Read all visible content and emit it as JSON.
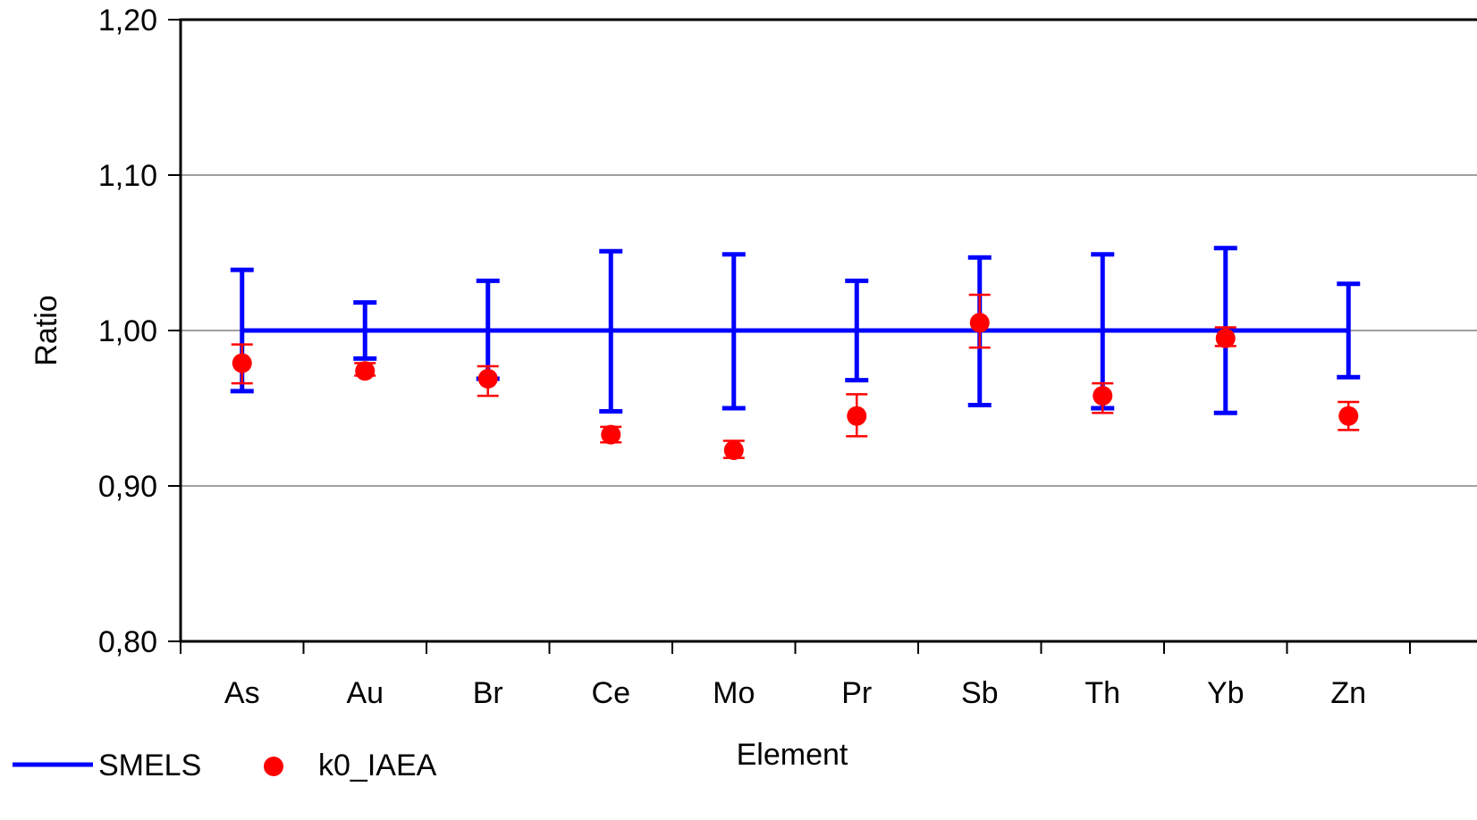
{
  "chart_data": {
    "type": "scatter",
    "xlabel": "Element",
    "ylabel": "Ratio",
    "ylim": [
      0.8,
      1.2
    ],
    "yticks": [
      "0,80",
      "0,90",
      "1,00",
      "1,10",
      "1,20"
    ],
    "ytick_values": [
      0.8,
      0.9,
      1.0,
      1.1,
      1.2
    ],
    "grid": "horizontal",
    "categories": [
      "As",
      "Au",
      "Br",
      "Ce",
      "Mo",
      "Pr",
      "Sb",
      "Th",
      "Yb",
      "Zn"
    ],
    "series": [
      {
        "name": "SMELS",
        "kind": "line-with-errorbars",
        "color": "#0000FF",
        "values": [
          1.0,
          1.0,
          1.0,
          1.0,
          1.0,
          1.0,
          1.0,
          1.0,
          1.0,
          1.0
        ],
        "err_low": [
          0.961,
          0.982,
          0.969,
          0.948,
          0.95,
          0.968,
          0.952,
          0.95,
          0.947,
          0.97
        ],
        "err_high": [
          1.039,
          1.018,
          1.032,
          1.051,
          1.049,
          1.032,
          1.047,
          1.049,
          1.053,
          1.03
        ]
      },
      {
        "name": "k0_IAEA",
        "kind": "points-with-errorbars",
        "color": "#FF0000",
        "values": [
          0.979,
          0.974,
          0.969,
          0.933,
          0.923,
          0.945,
          1.005,
          0.958,
          0.995,
          0.945
        ],
        "err_low": [
          0.966,
          0.971,
          0.958,
          0.928,
          0.918,
          0.932,
          0.989,
          0.947,
          0.99,
          0.936
        ],
        "err_high": [
          0.991,
          0.979,
          0.977,
          0.938,
          0.929,
          0.959,
          1.023,
          0.966,
          1.002,
          0.954
        ]
      }
    ],
    "legend": "bottom-left"
  }
}
